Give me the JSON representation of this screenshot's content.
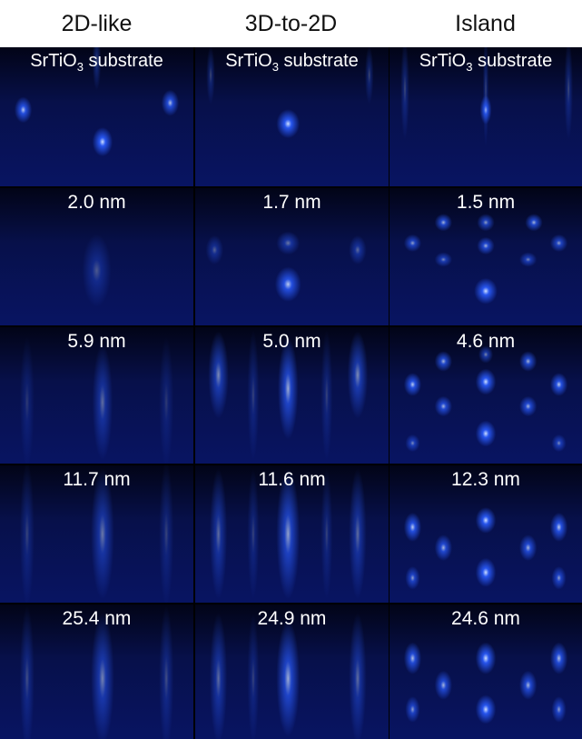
{
  "columns": [
    "2D-like",
    "3D-to-2D",
    "Island"
  ],
  "substrate_label": {
    "prefix": "SrTiO",
    "subscript": "3",
    "suffix": " substrate"
  },
  "rows": [
    [
      "SrTiO3 substrate",
      "SrTiO3 substrate",
      "SrTiO3 substrate"
    ],
    [
      "2.0 nm",
      "1.7 nm",
      "1.5 nm"
    ],
    [
      "5.9 nm",
      "5.0 nm",
      "4.6 nm"
    ],
    [
      "11.7 nm",
      "11.6 nm",
      "12.3 nm"
    ],
    [
      "25.4 nm",
      "24.9 nm",
      "24.6 nm"
    ]
  ],
  "colors": {
    "background": "#05092a",
    "spot": "#2a5cff",
    "spot_core": "#cfe0ff",
    "label": "#ffffff"
  }
}
